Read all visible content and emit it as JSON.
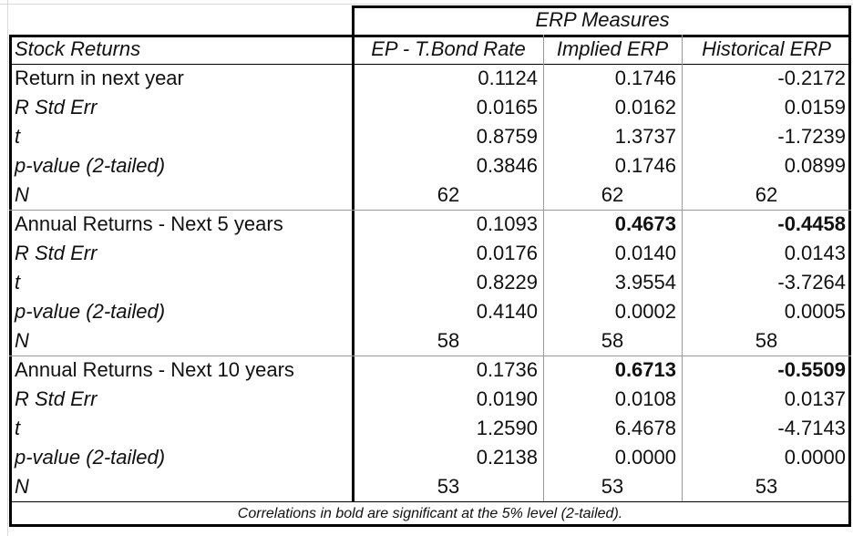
{
  "table": {
    "group_header": "ERP Measures",
    "columns": [
      "Stock Returns",
      "EP - T.Bond Rate",
      "Implied ERP",
      "Historical ERP"
    ],
    "rows": [
      {
        "label": "Return in next year",
        "italic": false,
        "values": [
          "0.1124",
          "0.1746",
          "-0.2172"
        ],
        "bold": [
          false,
          false,
          false
        ],
        "align": "right"
      },
      {
        "label": "R Std Err",
        "italic": true,
        "values": [
          "0.0165",
          "0.0162",
          "0.0159"
        ],
        "bold": [
          false,
          false,
          false
        ],
        "align": "right"
      },
      {
        "label": "t",
        "italic": true,
        "values": [
          "0.8759",
          "1.3737",
          "-1.7239"
        ],
        "bold": [
          false,
          false,
          false
        ],
        "align": "right"
      },
      {
        "label": "p-value (2-tailed)",
        "italic": true,
        "values": [
          "0.3846",
          "0.1746",
          "0.0899"
        ],
        "bold": [
          false,
          false,
          false
        ],
        "align": "right"
      },
      {
        "label": "N",
        "italic": true,
        "values": [
          "62",
          "62",
          "62"
        ],
        "bold": [
          false,
          false,
          false
        ],
        "align": "center"
      },
      {
        "label": "Annual Returns - Next 5 years",
        "italic": false,
        "values": [
          "0.1093",
          "0.4673",
          "-0.4458"
        ],
        "bold": [
          false,
          true,
          true
        ],
        "align": "right"
      },
      {
        "label": "R Std Err",
        "italic": true,
        "values": [
          "0.0176",
          "0.0140",
          "0.0143"
        ],
        "bold": [
          false,
          false,
          false
        ],
        "align": "right"
      },
      {
        "label": "t",
        "italic": true,
        "values": [
          "0.8229",
          "3.9554",
          "-3.7264"
        ],
        "bold": [
          false,
          false,
          false
        ],
        "align": "right"
      },
      {
        "label": "p-value (2-tailed)",
        "italic": true,
        "values": [
          "0.4140",
          "0.0002",
          "0.0005"
        ],
        "bold": [
          false,
          false,
          false
        ],
        "align": "right"
      },
      {
        "label": "N",
        "italic": true,
        "values": [
          "58",
          "58",
          "58"
        ],
        "bold": [
          false,
          false,
          false
        ],
        "align": "center"
      },
      {
        "label": "Annual Returns - Next 10 years",
        "italic": false,
        "values": [
          "0.1736",
          "0.6713",
          "-0.5509"
        ],
        "bold": [
          false,
          true,
          true
        ],
        "align": "right"
      },
      {
        "label": "R Std Err",
        "italic": true,
        "values": [
          "0.0190",
          "0.0108",
          "0.0137"
        ],
        "bold": [
          false,
          false,
          false
        ],
        "align": "right"
      },
      {
        "label": "t",
        "italic": true,
        "values": [
          "1.2590",
          "6.4678",
          "-4.7143"
        ],
        "bold": [
          false,
          false,
          false
        ],
        "align": "right"
      },
      {
        "label": "p-value (2-tailed)",
        "italic": true,
        "values": [
          "0.2138",
          "0.0000",
          "0.0000"
        ],
        "bold": [
          false,
          false,
          false
        ],
        "align": "right"
      },
      {
        "label": "N",
        "italic": true,
        "values": [
          "53",
          "53",
          "53"
        ],
        "bold": [
          false,
          false,
          false
        ],
        "align": "center"
      }
    ],
    "footnote": "Correlations in bold are significant at the 5% level (2-tailed)."
  },
  "colors": {
    "border": "#000000",
    "inner_rule": "#9a9a9a",
    "gridline": "#d9d9d9"
  }
}
